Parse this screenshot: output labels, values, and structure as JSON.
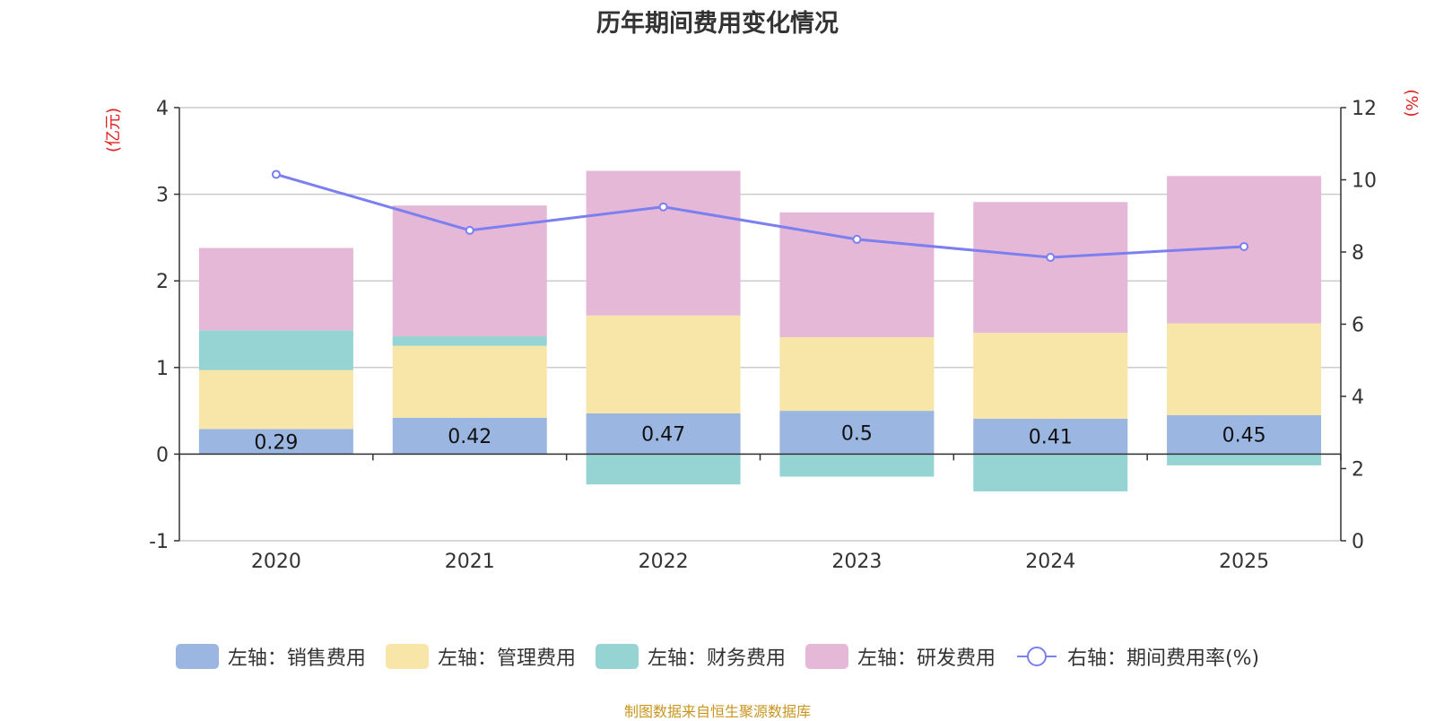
{
  "chart_data": {
    "type": "bar",
    "title": "历年期间费用变化情况",
    "categories": [
      "2020",
      "2021",
      "2022",
      "2023",
      "2024",
      "2025"
    ],
    "stacked": true,
    "series": [
      {
        "name": "左轴：销售费用",
        "axis": "left",
        "color": "#9bb6e0",
        "values": [
          0.29,
          0.42,
          0.47,
          0.5,
          0.41,
          0.45
        ],
        "labels": [
          "0.29",
          "0.42",
          "0.47",
          "0.5",
          "0.41",
          "0.45"
        ]
      },
      {
        "name": "左轴：管理费用",
        "axis": "left",
        "color": "#f8e6a8",
        "values": [
          0.68,
          0.83,
          1.13,
          0.85,
          0.99,
          1.06
        ]
      },
      {
        "name": "左轴：财务费用",
        "axis": "left",
        "color": "#96d4d4",
        "values": [
          0.46,
          0.11,
          -0.35,
          -0.26,
          -0.43,
          -0.13
        ]
      },
      {
        "name": "左轴：研发费用",
        "axis": "left",
        "color": "#e6b8d8",
        "values": [
          0.95,
          1.51,
          1.67,
          1.44,
          1.51,
          1.7
        ]
      },
      {
        "name": "右轴：期间费用率(%)",
        "axis": "right",
        "type": "line",
        "color": "#7b7ff0",
        "values": [
          10.15,
          8.6,
          9.25,
          8.35,
          7.85,
          8.15
        ]
      }
    ],
    "left_axis": {
      "unit": "(亿元)",
      "min": -1,
      "max": 4,
      "ticks": [
        -1,
        0,
        1,
        2,
        3,
        4
      ],
      "tick_labels": [
        "-1",
        "0",
        "1",
        "2",
        "3",
        "4"
      ]
    },
    "right_axis": {
      "unit": "(%)",
      "min": 0,
      "max": 12,
      "ticks": [
        0,
        2,
        4,
        6,
        8,
        10,
        12
      ],
      "tick_labels": [
        "0",
        "2",
        "4",
        "6",
        "8",
        "10",
        "12"
      ]
    },
    "grid": true,
    "legend_position": "bottom"
  },
  "source": "制图数据来自恒生聚源数据库"
}
